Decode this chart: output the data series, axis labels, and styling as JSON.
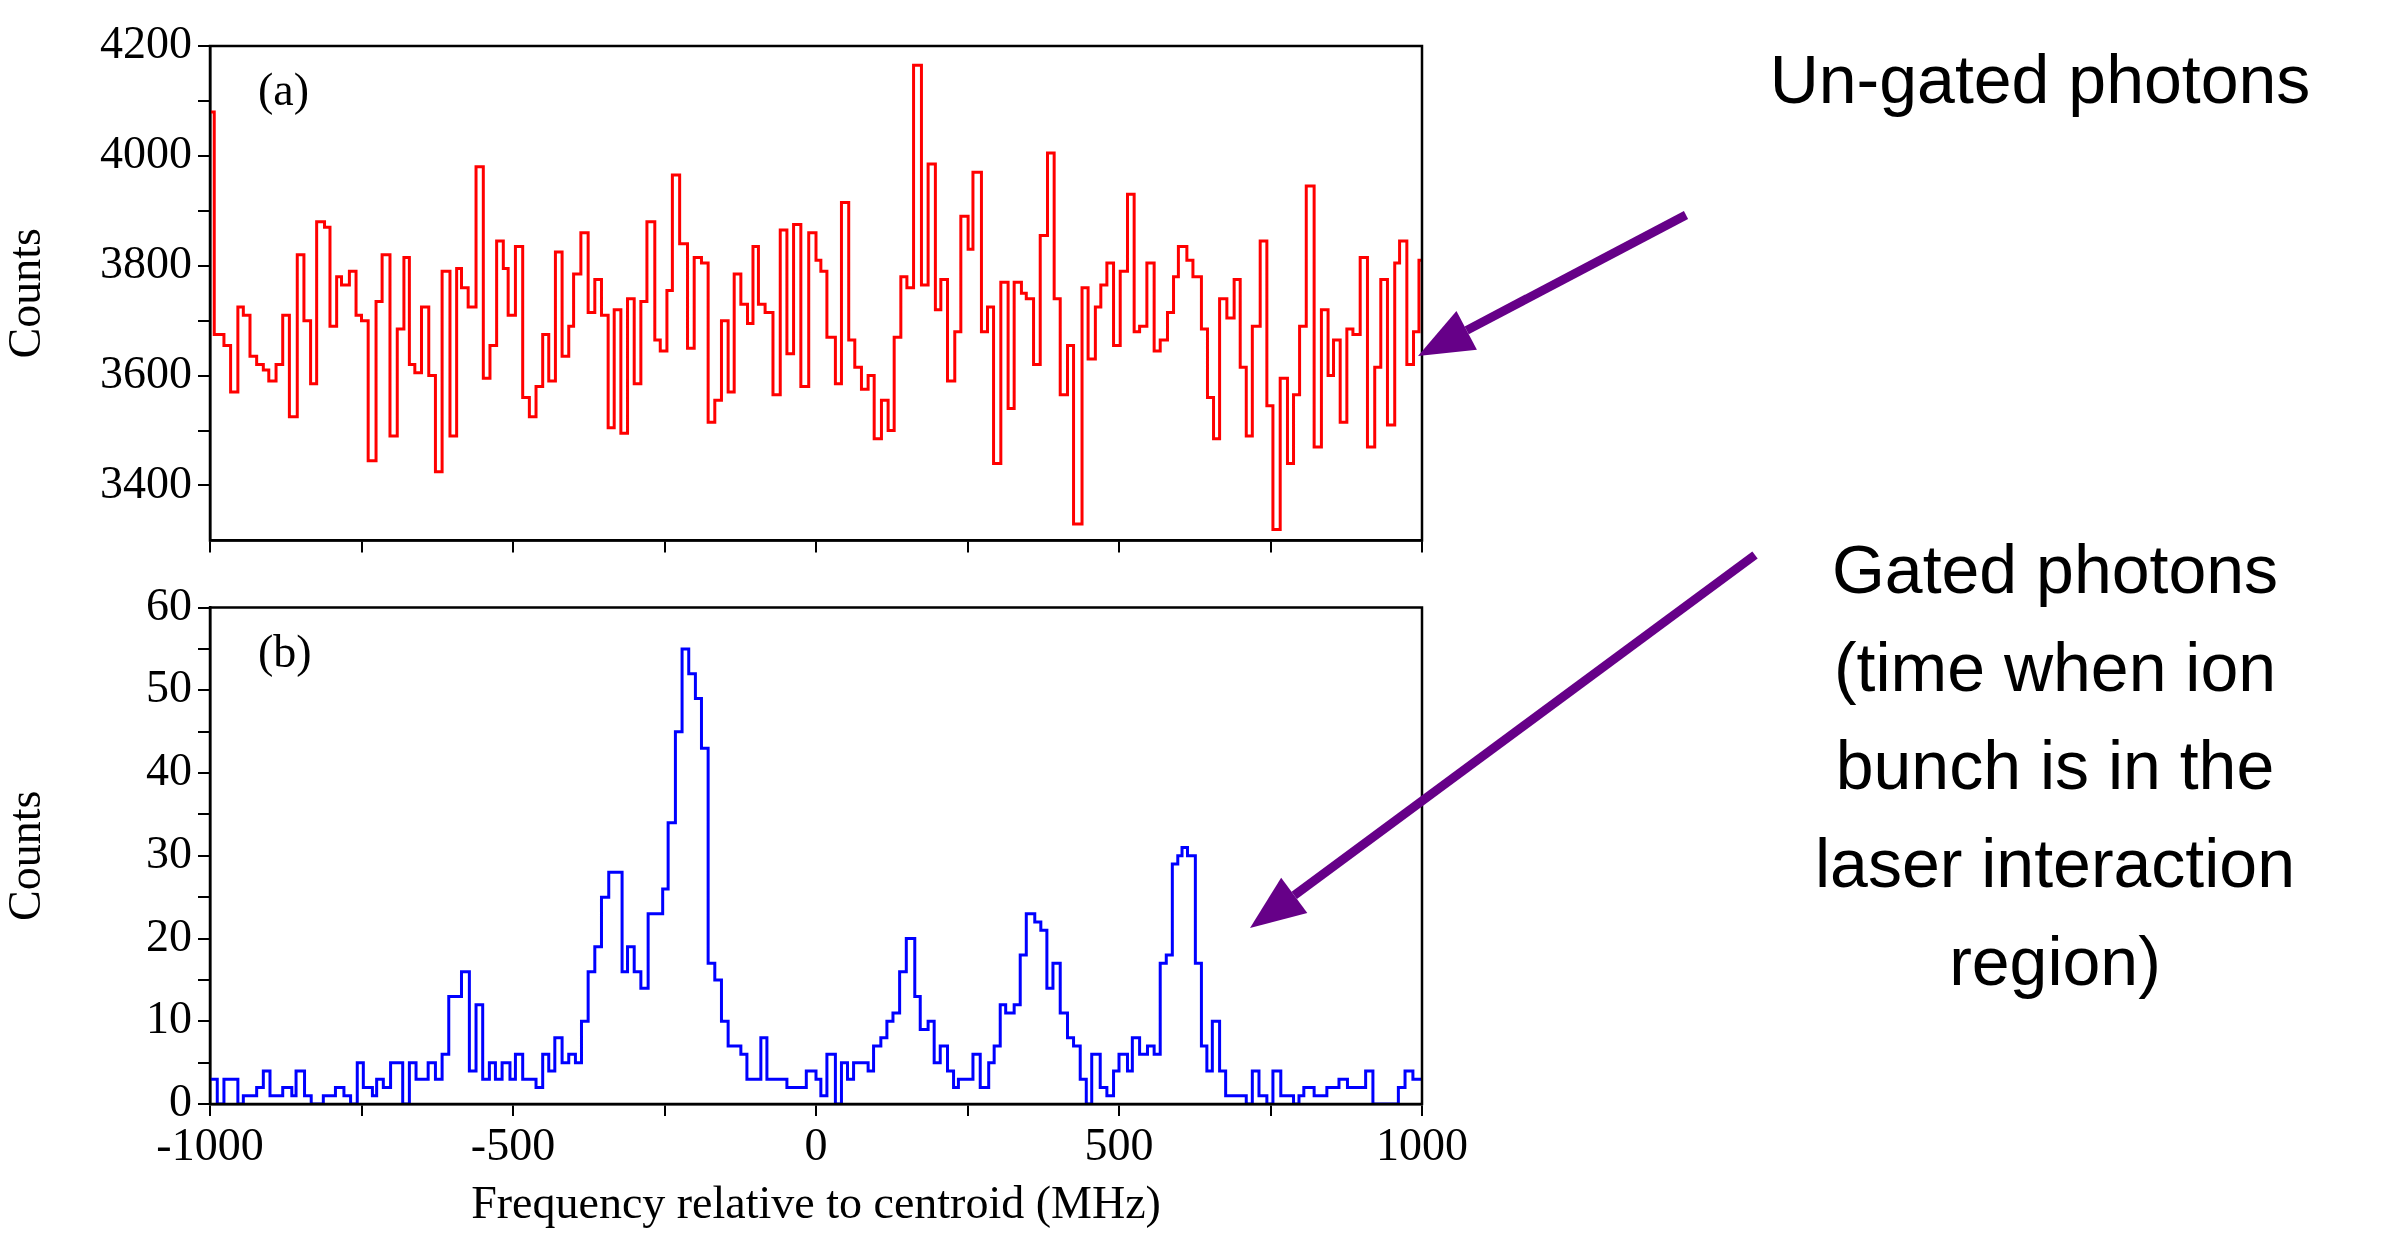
{
  "chart_data": [
    {
      "type": "histogram",
      "ylabel": "Counts",
      "color": "#ff0000",
      "xlim": [
        -1000,
        1000
      ],
      "ylim": [
        3300,
        4200
      ],
      "tick_labels": "y",
      "xticks": [
        -1000,
        {
          "value": -750,
          "label": null
        },
        -500,
        {
          "value": -250,
          "label": null
        },
        0,
        {
          "value": 250,
          "label": null
        },
        500,
        {
          "value": 750,
          "label": null
        },
        1000
      ],
      "yticks": [
        3400,
        {
          "value": 3500,
          "label": null
        },
        3600,
        {
          "value": 3700,
          "label": null
        },
        3800,
        {
          "value": 3900,
          "label": null
        },
        4000,
        {
          "value": 4100,
          "label": null
        },
        4200
      ],
      "bins": [
        -1000,
        -993,
        -977,
        -966,
        -954,
        -945,
        -934,
        -923,
        -912,
        -903,
        -891,
        -880,
        -869,
        -856,
        -845,
        -834,
        -824,
        -811,
        -802,
        -791,
        -783,
        -770,
        -759,
        -750,
        -739,
        -726,
        -716,
        -703,
        -691,
        -680,
        -671,
        -662,
        -651,
        -639,
        -628,
        -617,
        -604,
        -593,
        -585,
        -574,
        -561,
        -549,
        -538,
        -527,
        -516,
        -508,
        -496,
        -484,
        -473,
        -462,
        -451,
        -441,
        -430,
        -419,
        -408,
        -400,
        -388,
        -376,
        -365,
        -354,
        -343,
        -333,
        -322,
        -311,
        -300,
        -289,
        -279,
        -266,
        -257,
        -246,
        -237,
        -225,
        -212,
        -201,
        -189,
        -178,
        -167,
        -156,
        -145,
        -135,
        -124,
        -113,
        -104,
        -95,
        -84,
        -71,
        -59,
        -48,
        -37,
        -25,
        -12,
        0,
        8,
        18,
        32,
        42,
        54,
        64,
        75,
        86,
        96,
        108,
        119,
        129,
        140,
        150,
        161,
        174,
        185,
        197,
        206,
        217,
        229,
        239,
        251,
        259,
        273,
        283,
        293,
        305,
        317,
        327,
        339,
        347,
        359,
        370,
        382,
        393,
        403,
        415,
        425,
        439,
        449,
        461,
        470,
        480,
        491,
        502,
        514,
        525,
        534,
        546,
        558,
        568,
        580,
        590,
        598,
        612,
        622,
        636,
        646,
        656,
        666,
        678,
        690,
        700,
        710,
        720,
        733,
        744,
        754,
        766,
        778,
        788,
        798,
        809,
        822,
        834,
        845,
        854,
        865,
        876,
        886,
        898,
        910,
        922,
        932,
        943,
        955,
        963,
        975,
        986,
        995,
        1000
      ],
      "values": [
        4080,
        3675,
        3655,
        3570,
        3725,
        3710,
        3635,
        3620,
        3610,
        3590,
        3620,
        3710,
        3525,
        3820,
        3700,
        3585,
        3880,
        3870,
        3690,
        3780,
        3765,
        3790,
        3710,
        3700,
        3445,
        3735,
        3820,
        3490,
        3685,
        3815,
        3620,
        3605,
        3725,
        3600,
        3425,
        3790,
        3490,
        3795,
        3760,
        3725,
        3980,
        3595,
        3655,
        3845,
        3795,
        3710,
        3835,
        3560,
        3525,
        3580,
        3675,
        3590,
        3825,
        3635,
        3690,
        3785,
        3860,
        3715,
        3775,
        3710,
        3505,
        3720,
        3495,
        3740,
        3585,
        3735,
        3880,
        3665,
        3645,
        3755,
        3965,
        3840,
        3650,
        3815,
        3805,
        3515,
        3555,
        3700,
        3570,
        3785,
        3730,
        3695,
        3835,
        3730,
        3715,
        3565,
        3865,
        3640,
        3875,
        3580,
        3860,
        3810,
        3790,
        3670,
        3585,
        3915,
        3665,
        3615,
        3575,
        3600,
        3485,
        3555,
        3500,
        3670,
        3780,
        3760,
        4165,
        3765,
        3985,
        3720,
        3775,
        3590,
        3680,
        3890,
        3830,
        3970,
        3680,
        3725,
        3440,
        3770,
        3540,
        3770,
        3750,
        3740,
        3620,
        3855,
        4005,
        3740,
        3565,
        3655,
        3330,
        3760,
        3630,
        3725,
        3765,
        3805,
        3655,
        3790,
        3930,
        3680,
        3690,
        3805,
        3645,
        3665,
        3715,
        3780,
        3835,
        3810,
        3780,
        3685,
        3560,
        3485,
        3740,
        3705,
        3775,
        3615,
        3490,
        3690,
        3845,
        3545,
        3320,
        3595,
        3440,
        3565,
        3690,
        3945,
        3470,
        3720,
        3600,
        3665,
        3515,
        3685,
        3675,
        3815,
        3470,
        3615,
        3775,
        3510,
        3805,
        3845,
        3620,
        3680,
        3810
      ],
      "annotations": [
        "(a)",
        "Un-gated photons"
      ]
    },
    {
      "type": "histogram",
      "xlabel": "Frequency relative to centroid (MHz)",
      "ylabel": "Counts",
      "color": "#0000ff",
      "xlim": [
        -1000,
        1000
      ],
      "ylim": [
        0,
        60
      ],
      "xticks": [
        -1000,
        {
          "value": -750,
          "label": null
        },
        -500,
        {
          "value": -250,
          "label": null
        },
        0,
        {
          "value": 250,
          "label": null
        },
        500,
        {
          "value": 750,
          "label": null
        },
        1000
      ],
      "yticks": [
        0,
        {
          "value": 5,
          "label": null
        },
        10,
        {
          "value": 15,
          "label": null
        },
        20,
        {
          "value": 25,
          "label": null
        },
        30,
        {
          "value": 35,
          "label": null
        },
        40,
        {
          "value": 45,
          "label": null
        },
        50,
        {
          "value": 55,
          "label": null
        },
        60
      ],
      "bins": [
        -1000,
        -988,
        -977,
        -954,
        -945,
        -923,
        -912,
        -901,
        -880,
        -865,
        -858,
        -844,
        -833,
        -813,
        -793,
        -779,
        -768,
        -757,
        -747,
        -732,
        -725,
        -714,
        -702,
        -682,
        -671,
        -660,
        -640,
        -628,
        -617,
        -606,
        -585,
        -572,
        -561,
        -550,
        -539,
        -529,
        -518,
        -505,
        -496,
        -484,
        -462,
        -451,
        -441,
        -431,
        -419,
        -408,
        -397,
        -387,
        -376,
        -365,
        -354,
        -342,
        -320,
        -311,
        -300,
        -289,
        -277,
        -253,
        -244,
        -232,
        -221,
        -210,
        -199,
        -189,
        -178,
        -167,
        -156,
        -145,
        -124,
        -114,
        -91,
        -81,
        -48,
        -16,
        0,
        8,
        18,
        32,
        42,
        52,
        62,
        86,
        95,
        107,
        117,
        127,
        138,
        149,
        163,
        172,
        185,
        195,
        205,
        217,
        227,
        235,
        259,
        271,
        285,
        294,
        304,
        313,
        327,
        337,
        347,
        361,
        371,
        381,
        391,
        403,
        415,
        425,
        436,
        446,
        455,
        469,
        480,
        491,
        500,
        514,
        522,
        534,
        547,
        558,
        568,
        578,
        588,
        597,
        604,
        613,
        626,
        636,
        645,
        654,
        666,
        676,
        710,
        720,
        731,
        744,
        754,
        767,
        788,
        797,
        805,
        822,
        843,
        863,
        877,
        907,
        919,
        961,
        972,
        985,
        1000
      ],
      "values": [
        3,
        0,
        3,
        0,
        1,
        2,
        4,
        1,
        2,
        1,
        4,
        1,
        0,
        1,
        2,
        1,
        0,
        5,
        2,
        1,
        3,
        2,
        5,
        0,
        5,
        3,
        5,
        3,
        6,
        13,
        16,
        4,
        12,
        3,
        5,
        3,
        5,
        3,
        6,
        3,
        2,
        6,
        4,
        8,
        5,
        6,
        5,
        10,
        16,
        19,
        25,
        28,
        16,
        19,
        16,
        14,
        23,
        26,
        34,
        45,
        55,
        52,
        49,
        43,
        17,
        15,
        10,
        7,
        6,
        3,
        8,
        3,
        2,
        4,
        3,
        1,
        6,
        0,
        5,
        3,
        5,
        4,
        7,
        8,
        10,
        11,
        16,
        20,
        13,
        9,
        10,
        5,
        7,
        4,
        2,
        3,
        6,
        2,
        5,
        7,
        12,
        11,
        12,
        18,
        23,
        22,
        21,
        14,
        17,
        11,
        8,
        7,
        3,
        0,
        6,
        2,
        1,
        4,
        6,
        4,
        8,
        6,
        7,
        6,
        17,
        18,
        29,
        30,
        31,
        30,
        17,
        7,
        4,
        10,
        4,
        1,
        0,
        4,
        1,
        0,
        4,
        1,
        0,
        1,
        2,
        1,
        2,
        3,
        2,
        4,
        0,
        2,
        4,
        3
      ],
      "annotations": [
        "(b)",
        "Gated photons (time when ion bunch is in the laser interaction region)"
      ]
    }
  ]
}
